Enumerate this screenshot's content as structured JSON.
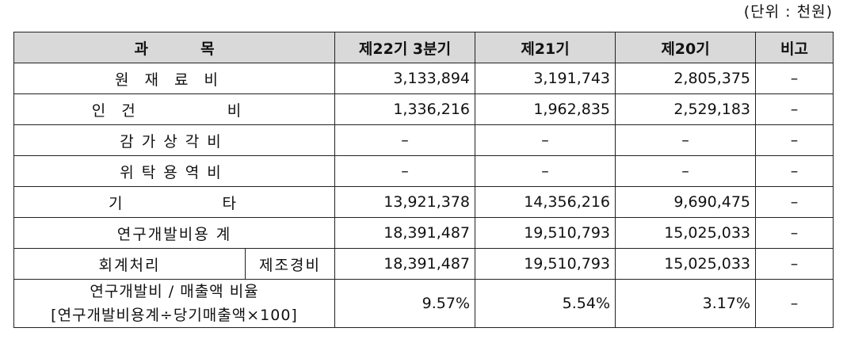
{
  "unit_note": "(단위 : 천원)",
  "table": {
    "headers": {
      "item": "과          목",
      "q3_22": "제22기 3분기",
      "fy21": "제21기",
      "fy20": "제20기",
      "remark": "비고"
    },
    "rows": [
      {
        "label": "원재료비",
        "q3_22": "3,133,894",
        "fy21": "3,191,743",
        "fy20": "2,805,375",
        "remark": "–"
      },
      {
        "label": "인건 비",
        "q3_22": "1,336,216",
        "fy21": "1,962,835",
        "fy20": "2,529,183",
        "remark": "–"
      },
      {
        "label": "감가상각비",
        "q3_22": "–",
        "fy21": "–",
        "fy20": "–",
        "remark": "–"
      },
      {
        "label": "위탁용역비",
        "q3_22": "–",
        "fy21": "–",
        "fy20": "–",
        "remark": "–"
      },
      {
        "label": "기 타",
        "q3_22": "13,921,378",
        "fy21": "14,356,216",
        "fy20": "9,690,475",
        "remark": "–"
      },
      {
        "label": "연구개발비용 계",
        "q3_22": "18,391,487",
        "fy21": "19,510,793",
        "fy20": "15,025,033",
        "remark": "–"
      }
    ],
    "accounting": {
      "label": "회계처리",
      "sub_label": "제조경비",
      "q3_22": "18,391,487",
      "fy21": "19,510,793",
      "fy20": "15,025,033",
      "remark": "–"
    },
    "ratio": {
      "label_line1": "연구개발비 / 매출액 비율",
      "label_line2": "[연구개발비용계÷당기매출액×100]",
      "q3_22": "9.57%",
      "fy21": "5.54%",
      "fy20": "3.17%",
      "remark": "–"
    }
  }
}
